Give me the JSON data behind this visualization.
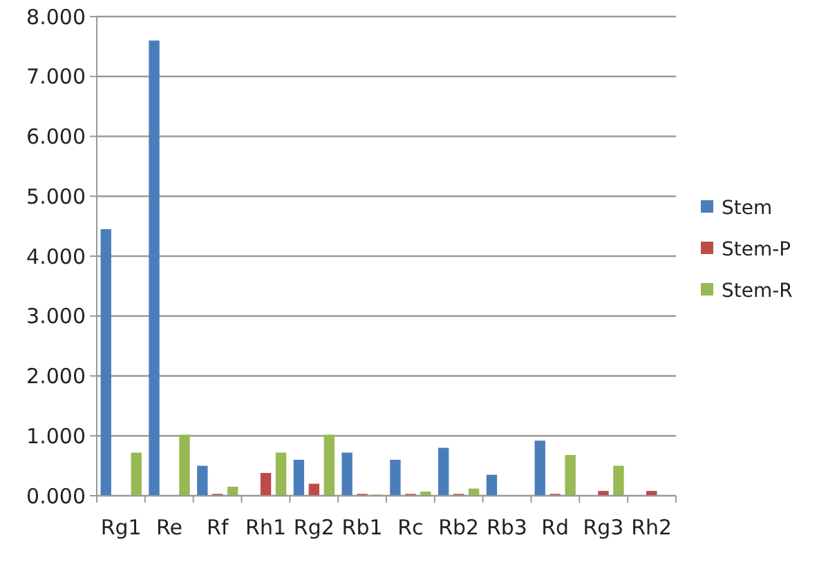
{
  "chart_data": {
    "type": "bar",
    "categories": [
      "Rg1",
      "Re",
      "Rf",
      "Rh1",
      "Rg2",
      "Rb1",
      "Rc",
      "Rb2",
      "Rb3",
      "Rd",
      "Rg3",
      "Rh2"
    ],
    "series": [
      {
        "name": "Stem",
        "color": "#4a7ebb",
        "values": [
          4.45,
          7.6,
          0.5,
          0,
          0.6,
          0.72,
          0.6,
          0.8,
          0.35,
          0.92,
          0,
          0
        ]
      },
      {
        "name": "Stem-P",
        "color": "#be4b48",
        "values": [
          0,
          0,
          0.03,
          0.38,
          0.2,
          0.03,
          0.03,
          0.03,
          0,
          0.03,
          0.08,
          0.08
        ]
      },
      {
        "name": "Stem-R",
        "color": "#98b954",
        "values": [
          0.72,
          1.02,
          0.15,
          0.72,
          1.02,
          0.02,
          0.07,
          0.12,
          0,
          0.68,
          0.5,
          0
        ]
      }
    ],
    "ylim": [
      0,
      8
    ],
    "yticks": [
      {
        "value": 0,
        "label": "0.000"
      },
      {
        "value": 1,
        "label": "1.000"
      },
      {
        "value": 2,
        "label": "2.000"
      },
      {
        "value": 3,
        "label": "3.000"
      },
      {
        "value": 4,
        "label": "4.000"
      },
      {
        "value": 5,
        "label": "5.000"
      },
      {
        "value": 6,
        "label": "6.000"
      },
      {
        "value": 7,
        "label": "7.000"
      },
      {
        "value": 8,
        "label": "8.000"
      }
    ],
    "grid": "y",
    "legend": "right"
  }
}
